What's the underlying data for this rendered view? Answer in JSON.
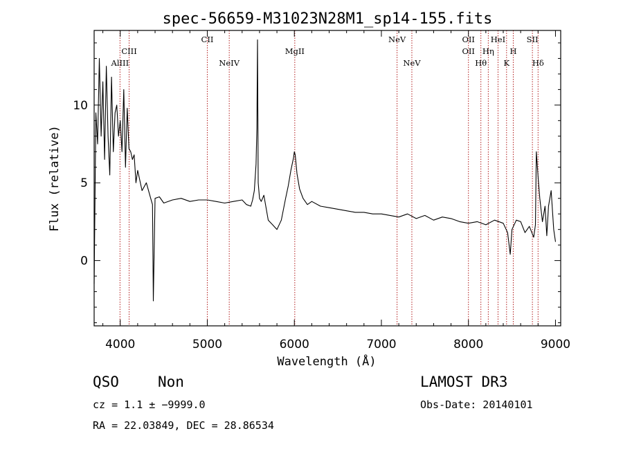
{
  "chart_data": {
    "type": "line",
    "title": "spec-56659-M31023N28M1_sp14-155.fits",
    "xlabel": "Wavelength (Å)",
    "ylabel": "Flux (relative)",
    "xlim": [
      3700,
      9060
    ],
    "ylim": [
      -4.2,
      14.8
    ],
    "x_ticks": [
      4000,
      5000,
      6000,
      7000,
      8000,
      9000
    ],
    "y_ticks": [
      0,
      5,
      10
    ],
    "grid": false,
    "series": [
      {
        "x": [
          3700,
          3720,
          3740,
          3760,
          3780,
          3800,
          3820,
          3840,
          3860,
          3880,
          3900,
          3920,
          3940,
          3960,
          3980,
          4000,
          4020,
          4040,
          4060,
          4080,
          4100,
          4120,
          4140,
          4160,
          4180,
          4200,
          4250,
          4300,
          4350,
          4370,
          4380,
          4400,
          4450,
          4500,
          4600,
          4700,
          4800,
          4900,
          5000,
          5100,
          5200,
          5300,
          5400,
          5450,
          5500,
          5520,
          5540,
          5560,
          5570,
          5577,
          5585,
          5600,
          5620,
          5650,
          5700,
          5750,
          5800,
          5850,
          5900,
          5930,
          5960,
          5990,
          6000,
          6010,
          6030,
          6060,
          6100,
          6150,
          6200,
          6300,
          6400,
          6500,
          6600,
          6700,
          6800,
          6900,
          7000,
          7100,
          7200,
          7300,
          7400,
          7500,
          7600,
          7700,
          7800,
          7900,
          8000,
          8100,
          8200,
          8300,
          8400,
          8450,
          8480,
          8500,
          8550,
          8600,
          8650,
          8700,
          8750,
          8770,
          8780,
          8800,
          8820,
          8850,
          8880,
          8900,
          8920,
          8950,
          8980,
          9000
        ],
        "y": [
          -1.5,
          9.5,
          7.5,
          13.0,
          8.0,
          11.5,
          6.5,
          12.5,
          8.0,
          5.5,
          11.8,
          7.0,
          9.5,
          10.0,
          8.0,
          9.0,
          7.0,
          11.0,
          6.0,
          9.8,
          7.2,
          7.0,
          6.5,
          6.8,
          5.0,
          5.8,
          4.5,
          5.0,
          4.0,
          3.6,
          -2.6,
          4.0,
          4.1,
          3.7,
          3.9,
          4.0,
          3.8,
          3.9,
          3.9,
          3.8,
          3.7,
          3.8,
          3.9,
          3.6,
          3.5,
          3.9,
          4.5,
          6.2,
          8.5,
          14.2,
          5.0,
          4.0,
          3.8,
          4.2,
          2.6,
          2.3,
          2.0,
          2.6,
          4.0,
          4.8,
          5.8,
          6.6,
          7.0,
          6.8,
          5.6,
          4.6,
          4.0,
          3.6,
          3.8,
          3.5,
          3.4,
          3.3,
          3.2,
          3.1,
          3.1,
          3.0,
          3.0,
          2.9,
          2.8,
          3.0,
          2.7,
          2.9,
          2.6,
          2.8,
          2.7,
          2.5,
          2.4,
          2.5,
          2.3,
          2.6,
          2.4,
          1.8,
          0.4,
          2.0,
          2.6,
          2.5,
          1.8,
          2.2,
          1.5,
          2.3,
          7.0,
          5.4,
          4.0,
          2.5,
          3.5,
          1.6,
          3.5,
          4.5,
          2.0,
          1.2
        ]
      }
    ],
    "annotations": [
      {
        "label": "AlIII",
        "x": 3997,
        "row": "lower"
      },
      {
        "label": "CIII",
        "x": 4102,
        "row": "middle"
      },
      {
        "label": "CII",
        "x": 5000,
        "row": "upper"
      },
      {
        "label": "NeIV",
        "x": 5252,
        "row": "lower"
      },
      {
        "label": "MgII",
        "x": 6005,
        "row": "middle"
      },
      {
        "label": "NeV",
        "x": 7180,
        "row": "upper"
      },
      {
        "label": "NeV",
        "x": 7350,
        "row": "lower"
      },
      {
        "label": "OII",
        "x": 8000,
        "row": "upper"
      },
      {
        "label": "OII",
        "x": 8000,
        "row": "middle"
      },
      {
        "label": "Hθ",
        "x": 8143,
        "row": "lower"
      },
      {
        "label": "Hη",
        "x": 8228,
        "row": "middle"
      },
      {
        "label": "HeI",
        "x": 8340,
        "row": "upper"
      },
      {
        "label": "K",
        "x": 8438,
        "row": "lower"
      },
      {
        "label": "H",
        "x": 8515,
        "row": "middle"
      },
      {
        "label": "SII",
        "x": 8735,
        "row": "upper"
      },
      {
        "label": "Hδ",
        "x": 8800,
        "row": "lower"
      }
    ],
    "marker_lines_x": [
      3997,
      4102,
      5000,
      5252,
      6005,
      7180,
      7350,
      8000,
      8143,
      8228,
      8340,
      8438,
      8515,
      8735,
      8800
    ],
    "marker_line_color": "#b01818"
  },
  "footer": {
    "class": "QSO",
    "subclass": "Non",
    "survey": "LAMOST DR3",
    "cz": "cz = 1.1 ± −9999.0",
    "obs_date": "Obs-Date: 20140101",
    "coords": "RA =  22.03849, DEC =  28.86534"
  }
}
